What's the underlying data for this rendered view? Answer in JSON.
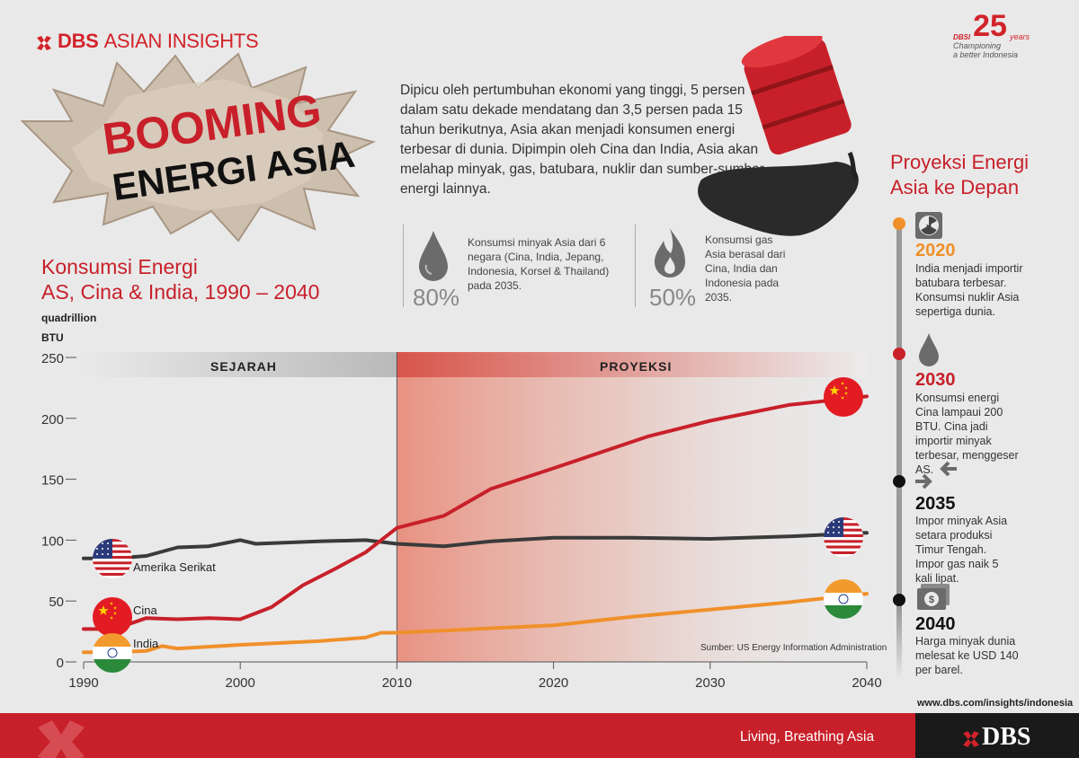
{
  "brand": {
    "mark": "DBS",
    "name": "ASIAN INSIGHTS"
  },
  "anniversary": {
    "small": "DBSI",
    "number": "25",
    "unit": "years",
    "line1": "Championing",
    "line2": "a better Indonesia"
  },
  "headline": {
    "line1": "BOOMING",
    "line2": "ENERGI ASIA"
  },
  "intro": "Dipicu oleh pertumbuhan ekonomi yang tinggi, 5 persen dalam satu dekade mendatang dan 3,5 persen pada 15 tahun berikutnya, Asia akan menjadi konsumen energi terbesar di dunia. Dipimpin oleh Cina dan India, Asia akan melahap minyak, gas, batubara, nuklir dan sumber-sumber energi lainnya.",
  "stats": [
    {
      "pct": "80%",
      "text": "Konsumsi minyak Asia dari 6 negara (Cina, India, Jepang, Indonesia, Korsel & Thailand) pada 2035.",
      "icon": "oil-drop-icon"
    },
    {
      "pct": "50%",
      "text": "Konsumsi gas Asia berasal dari Cina, India dan Indonesia pada 2035.",
      "icon": "flame-icon"
    }
  ],
  "chart_title": {
    "line1": "Konsumsi Energi",
    "line2": "AS, Cina & India, 1990 – 2040"
  },
  "y_unit": {
    "line1": "quadrillion",
    "line2": "BTU"
  },
  "sections": {
    "history": "SEJARAH",
    "projection": "PROYEKSI"
  },
  "source": "Sumber: US Energy Information Administration",
  "chart_data": {
    "type": "line",
    "title": "Konsumsi Energi AS, Cina & India, 1990 – 2040",
    "ylabel": "quadrillion BTU",
    "xlim": [
      1990,
      2040
    ],
    "ylim": [
      0,
      250
    ],
    "x_ticks": [
      1990,
      2000,
      2010,
      2020,
      2030,
      2040
    ],
    "y_ticks": [
      0,
      50,
      100,
      150,
      200,
      250
    ],
    "grid": false,
    "series": [
      {
        "name": "Amerika Serikat",
        "color": "#3a3a3a",
        "x": [
          1990,
          1992,
          1994,
          1996,
          1998,
          2000,
          2001,
          2003,
          2005,
          2008,
          2010,
          2013,
          2016,
          2020,
          2025,
          2030,
          2035,
          2040
        ],
        "y": [
          85,
          85,
          87,
          94,
          95,
          100,
          97,
          98,
          99,
          100,
          97,
          95,
          99,
          102,
          102,
          101,
          103,
          106
        ]
      },
      {
        "name": "Cina",
        "color": "#c8202a",
        "x": [
          1990,
          1992,
          1994,
          1996,
          1998,
          2000,
          2002,
          2004,
          2006,
          2008,
          2010,
          2013,
          2016,
          2020,
          2026,
          2030,
          2035,
          2040
        ],
        "y": [
          27,
          27,
          36,
          35,
          36,
          35,
          45,
          63,
          76,
          90,
          110,
          120,
          142,
          159,
          185,
          198,
          211,
          218
        ]
      },
      {
        "name": "India",
        "color": "#f0902a",
        "x": [
          1990,
          1992,
          1994,
          1995,
          1996,
          2000,
          2005,
          2008,
          2009,
          2010,
          2015,
          2020,
          2025,
          2030,
          2035,
          2040
        ],
        "y": [
          8,
          8,
          9,
          13,
          11,
          14,
          17,
          20,
          24,
          24,
          27,
          30,
          37,
          43,
          49,
          56
        ]
      }
    ]
  },
  "right": {
    "title_line1": "Proyeksi Energi",
    "title_line2": "Asia ke Depan",
    "items": [
      {
        "year": "2020",
        "color": "#f0902a",
        "icon": "radiation-icon",
        "text": "India menjadi importir batubara terbesar. Konsumsi nuklir Asia sepertiga dunia."
      },
      {
        "year": "2030",
        "color": "#c8202a",
        "icon": "oil-drop-icon",
        "text": "Konsumsi energi Cina lampaui 200 BTU. Cina jadi importir minyak terbesar, menggeser AS."
      },
      {
        "year": "2035",
        "color": "#222222",
        "icon": "converge-arrows-icon",
        "text": "Impor minyak Asia setara produksi Timur Tengah. Impor gas naik 5 kali lipat."
      },
      {
        "year": "2040",
        "color": "#222222",
        "icon": "money-icon",
        "text": "Harga minyak dunia melesat ke USD 140 per barel."
      }
    ]
  },
  "footer": {
    "tagline": "Living, Breathing Asia",
    "site": "www.dbs.com/insights/indonesia",
    "logo": "DBS"
  }
}
